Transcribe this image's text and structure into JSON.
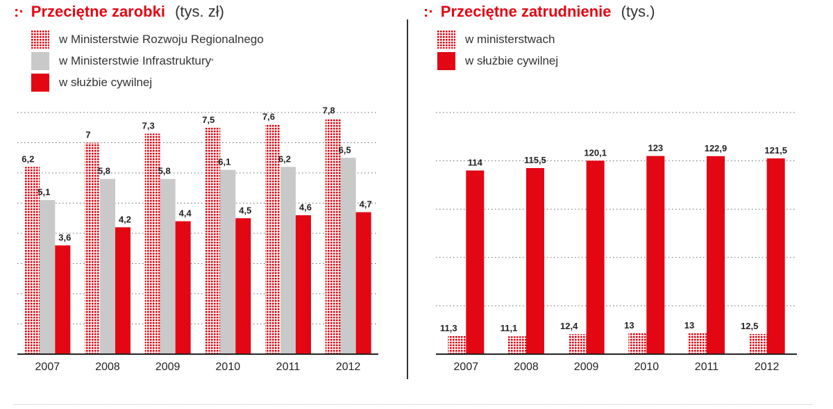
{
  "colors": {
    "red": "#e30613",
    "grey": "#c9c9c9",
    "dots": "#e30613",
    "axis": "#222222",
    "grid": "#666666"
  },
  "left": {
    "title_icon": ":·",
    "title": "Przeciętne zarobki",
    "unit": "(tys. zł)",
    "legend": [
      {
        "label": "w Ministerstwie Rozwoju Regionalnego",
        "style": "dotted"
      },
      {
        "label": "w Ministerstwie Infrastruktury",
        "style": "grey",
        "sup": "*"
      },
      {
        "label": "w służbie cywilnej",
        "style": "red"
      }
    ]
  },
  "right": {
    "title_icon": ":·",
    "title": "Przeciętne zatrudnienie",
    "unit": "(tys.)",
    "legend": [
      {
        "label": "w ministerstwach",
        "style": "dotted"
      },
      {
        "label": "w służbie cywilnej",
        "style": "red"
      }
    ]
  },
  "chart_data": [
    {
      "type": "bar",
      "title": "Przeciętne zarobki",
      "subtitle": "(tys. zł)",
      "categories": [
        "2007",
        "2008",
        "2009",
        "2010",
        "2011",
        "2012"
      ],
      "series": [
        {
          "name": "w Ministerstwie Rozwoju Regionalnego",
          "style": "dotted",
          "values": [
            6.2,
            7,
            7.3,
            7.5,
            7.6,
            7.8
          ],
          "labels": [
            "6,2",
            "7",
            "7,3",
            "7,5",
            "7,6",
            "7,8"
          ]
        },
        {
          "name": "w Ministerstwie Infrastruktury",
          "style": "grey",
          "values": [
            5.1,
            5.8,
            5.8,
            6.1,
            6.2,
            6.5
          ],
          "labels": [
            "5,1",
            "5,8",
            "5,8",
            "6,1",
            "6,2",
            "6,5"
          ]
        },
        {
          "name": "w służbie cywilnej",
          "style": "red",
          "values": [
            3.6,
            4.2,
            4.4,
            4.5,
            4.6,
            4.7
          ],
          "labels": [
            "3,6",
            "4,2",
            "4,4",
            "4,5",
            "4,6",
            "4,7"
          ]
        }
      ],
      "ylim": [
        0,
        8
      ],
      "grid": "dotted horizontal",
      "legend_position": "top-left"
    },
    {
      "type": "bar",
      "title": "Przeciętne zatrudnienie",
      "subtitle": "(tys.)",
      "categories": [
        "2007",
        "2008",
        "2009",
        "2010",
        "2011",
        "2012"
      ],
      "series": [
        {
          "name": "w ministerstwach",
          "style": "dotted",
          "values": [
            11.3,
            11.1,
            12.4,
            13,
            13,
            12.5
          ],
          "labels": [
            "11,3",
            "11,1",
            "12,4",
            "13",
            "13",
            "12,5"
          ]
        },
        {
          "name": "w służbie cywilnej",
          "style": "red",
          "values": [
            114,
            115.5,
            120.1,
            123,
            122.9,
            121.5
          ],
          "labels": [
            "114",
            "115,5",
            "120,1",
            "123",
            "122,9",
            "121,5"
          ]
        }
      ],
      "ylim": [
        0,
        150
      ],
      "grid": "dotted horizontal",
      "legend_position": "top-left"
    }
  ]
}
